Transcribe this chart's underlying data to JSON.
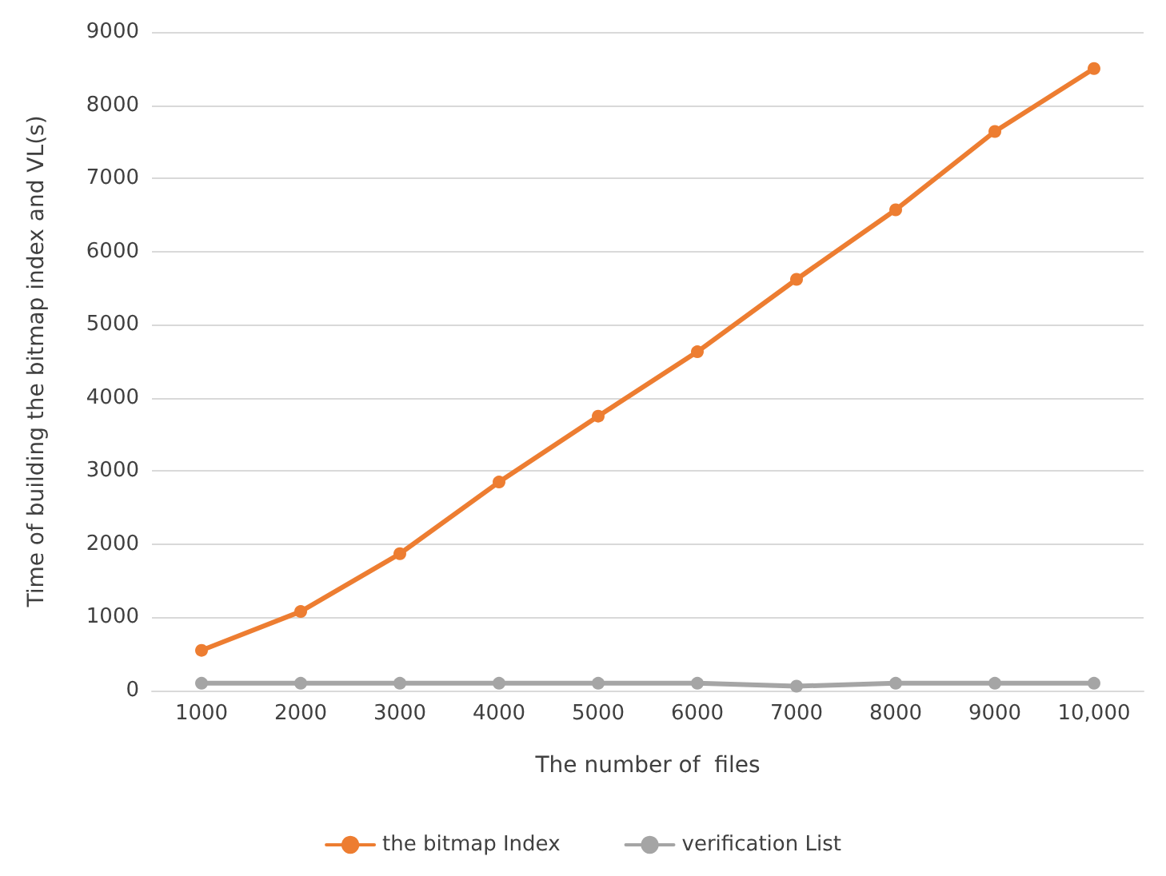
{
  "chart_data": {
    "type": "line",
    "xlabel": "The number of  files",
    "ylabel": "Time of building the bitmap index and VL(s)",
    "categories": [
      "1000",
      "2000",
      "3000",
      "4000",
      "5000",
      "6000",
      "7000",
      "8000",
      "9000",
      "10,000"
    ],
    "series": [
      {
        "name": "the bitmap Index",
        "color": "#ed7d31",
        "values": [
          550,
          1080,
          1870,
          2850,
          3750,
          4630,
          5620,
          6570,
          7640,
          8500
        ]
      },
      {
        "name": "verification List",
        "color": "#a5a5a5",
        "values": [
          100,
          100,
          100,
          100,
          100,
          100,
          60,
          100,
          100,
          100
        ]
      }
    ],
    "ylim": [
      0,
      9000
    ],
    "yticks": [
      0,
      1000,
      2000,
      3000,
      4000,
      5000,
      6000,
      7000,
      8000,
      9000
    ],
    "grid": "y",
    "legend": "bottom",
    "marker": "circle",
    "line_style": "solid"
  }
}
